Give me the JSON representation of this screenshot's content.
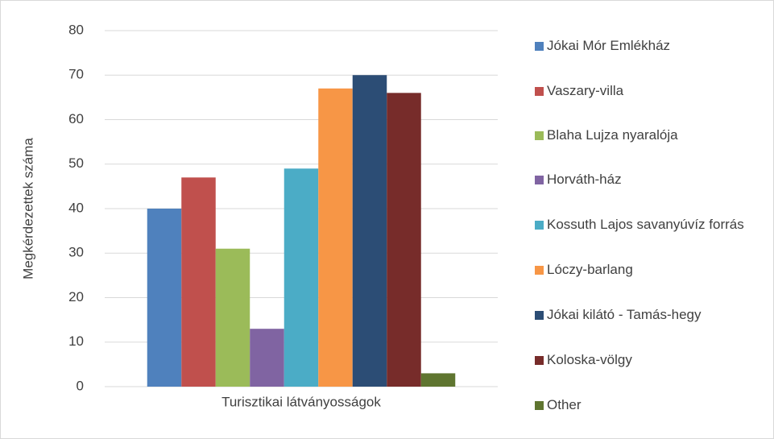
{
  "chart_data": {
    "type": "bar",
    "categories": [
      "Turisztikai látványosságok"
    ],
    "y_label": "Megkérdezettek száma",
    "series": [
      {
        "name": "Jókai Mór Emlékház",
        "color": "#4f81bd",
        "values": [
          40
        ]
      },
      {
        "name": "Vaszary-villa",
        "color": "#c0504d",
        "values": [
          47
        ]
      },
      {
        "name": "Blaha Lujza nyaralója",
        "color": "#9bbb59",
        "values": [
          31
        ]
      },
      {
        "name": "Horváth-ház",
        "color": "#8064a2",
        "values": [
          13
        ]
      },
      {
        "name": "Kossuth Lajos savanyúvíz forrás",
        "color": "#4bacc6",
        "values": [
          49
        ]
      },
      {
        "name": "Lóczy-barlang",
        "color": "#f79646",
        "values": [
          67
        ]
      },
      {
        "name": "Jókai kilátó - Tamás-hegy",
        "color": "#2c4d75",
        "values": [
          70
        ]
      },
      {
        "name": "Koloska-völgy",
        "color": "#772c2a",
        "values": [
          66
        ]
      },
      {
        "name": "Other",
        "color": "#5f7530",
        "values": [
          3
        ]
      }
    ],
    "ylim": [
      0,
      80
    ],
    "yticks": [
      0,
      10,
      20,
      30,
      40,
      50,
      60,
      70,
      80
    ],
    "grid": true,
    "legend": "right"
  }
}
